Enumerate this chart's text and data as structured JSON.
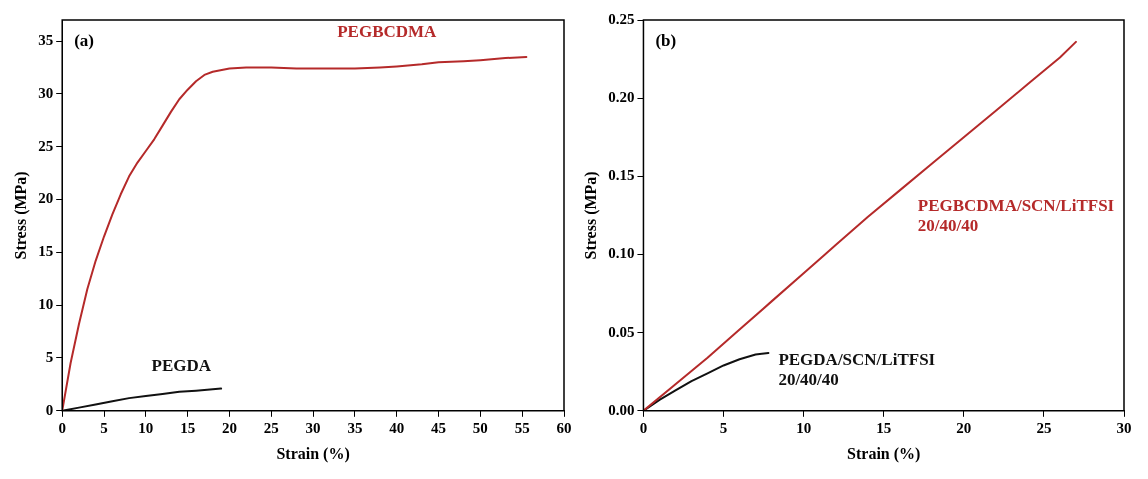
{
  "chart_data": [
    {
      "type": "line",
      "xlabel": "Strain (%)",
      "ylabel": "Stress (MPa)",
      "xlim": [
        0,
        60
      ],
      "ylim": [
        0,
        37
      ],
      "xticks": [
        0,
        5,
        10,
        15,
        20,
        25,
        30,
        35,
        40,
        45,
        50,
        55,
        60
      ],
      "yticks": [
        0,
        5,
        10,
        15,
        20,
        25,
        30,
        35
      ],
      "grid": false,
      "legend": false,
      "marker": "none",
      "series": [
        {
          "name": "PEGBCDMA",
          "color": "#b52a2a",
          "x": [
            0,
            1,
            2,
            3,
            4,
            5,
            6,
            7,
            8,
            9,
            10,
            11,
            12,
            13,
            14,
            15,
            16,
            17,
            18,
            20,
            22,
            25,
            28,
            30,
            33,
            35,
            38,
            40,
            43,
            45,
            48,
            50,
            53,
            55.5
          ],
          "values": [
            0,
            4.5,
            8.2,
            11.5,
            14.2,
            16.5,
            18.6,
            20.5,
            22.2,
            23.5,
            24.6,
            25.7,
            27,
            28.3,
            29.5,
            30.4,
            31.2,
            31.8,
            32.1,
            32.4,
            32.5,
            32.5,
            32.4,
            32.4,
            32.4,
            32.4,
            32.5,
            32.6,
            32.8,
            33,
            33.1,
            33.2,
            33.4,
            33.5
          ]
        },
        {
          "name": "PEGDA",
          "color": "#111111",
          "x": [
            0,
            2,
            4,
            6,
            8,
            10,
            12,
            14,
            16,
            19
          ],
          "values": [
            0,
            0.3,
            0.6,
            0.9,
            1.2,
            1.4,
            1.6,
            1.8,
            1.9,
            2.1
          ]
        }
      ],
      "annotations": [
        "(a)"
      ]
    },
    {
      "type": "line",
      "xlabel": "Strain (%)",
      "ylabel": "Stress (MPa)",
      "xlim": [
        0,
        30
      ],
      "ylim": [
        0,
        0.25
      ],
      "xticks": [
        0,
        5,
        10,
        15,
        20,
        25,
        30
      ],
      "yticks": [
        {
          "value": 0,
          "label": "0.00"
        },
        {
          "value": 0.05,
          "label": "0.05"
        },
        {
          "value": 0.1,
          "label": "0.10"
        },
        {
          "value": 0.15,
          "label": "0.15"
        },
        {
          "value": 0.2,
          "label": "0.20"
        },
        {
          "value": 0.25,
          "label": "0.25"
        }
      ],
      "grid": false,
      "legend": false,
      "marker": "none",
      "series": [
        {
          "name": "PEGBCDMA/SCN/LiTFSI\n20/40/40",
          "color": "#b52a2a",
          "x": [
            0,
            2,
            4,
            6,
            8,
            10,
            12,
            14,
            16,
            18,
            20,
            22,
            24,
            26,
            27
          ],
          "values": [
            0,
            0.017,
            0.034,
            0.052,
            0.07,
            0.088,
            0.106,
            0.124,
            0.141,
            0.158,
            0.175,
            0.192,
            0.209,
            0.226,
            0.236
          ]
        },
        {
          "name": "PEGDA/SCN/LiTFSI\n20/40/40",
          "color": "#111111",
          "x": [
            0,
            1,
            2,
            3,
            4,
            5,
            6,
            7,
            7.8
          ],
          "values": [
            0,
            0.007,
            0.013,
            0.019,
            0.024,
            0.029,
            0.033,
            0.036,
            0.037
          ]
        }
      ],
      "annotations": [
        "(b)"
      ]
    }
  ]
}
